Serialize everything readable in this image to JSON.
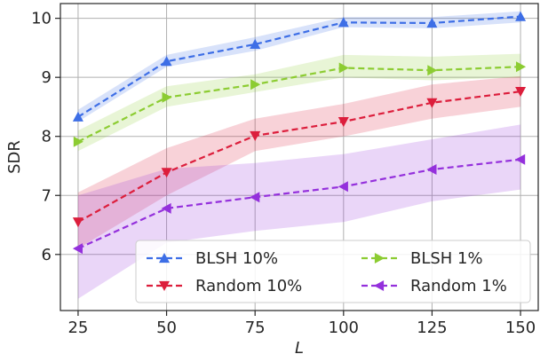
{
  "chart_data": {
    "type": "line",
    "title": "",
    "xlabel": "L",
    "ylabel": "SDR",
    "x": [
      25,
      50,
      75,
      100,
      125,
      150
    ],
    "x_ticks": [
      "25",
      "50",
      "75",
      "100",
      "125",
      "150"
    ],
    "y_ticks": [
      "6",
      "7",
      "8",
      "9",
      "10"
    ],
    "xlim": [
      20,
      155
    ],
    "ylim": [
      5.05,
      10.25
    ],
    "grid": true,
    "legend_position": "lower-right",
    "series": [
      {
        "name": "BLSH 10%",
        "values": [
          8.33,
          9.27,
          9.56,
          9.93,
          9.92,
          10.03
        ],
        "band_low": [
          8.25,
          9.18,
          9.45,
          9.85,
          9.83,
          9.93
        ],
        "band_high": [
          8.45,
          9.38,
          9.68,
          10.02,
          10.02,
          10.12
        ],
        "color": "#3d6ee6",
        "marker": "triangle-up"
      },
      {
        "name": "Random 10%",
        "values": [
          6.55,
          7.39,
          8.01,
          8.25,
          8.57,
          8.76
        ],
        "band_low": [
          6.1,
          7.0,
          7.75,
          8.0,
          8.3,
          8.5
        ],
        "band_high": [
          7.05,
          7.8,
          8.3,
          8.55,
          8.88,
          9.02
        ],
        "color": "#dc1e3c",
        "marker": "triangle-down"
      },
      {
        "name": "BLSH 1%",
        "values": [
          7.91,
          8.66,
          8.88,
          9.16,
          9.12,
          9.18
        ],
        "band_low": [
          7.75,
          8.5,
          8.75,
          9.0,
          8.95,
          9.0
        ],
        "band_high": [
          8.1,
          8.85,
          9.05,
          9.38,
          9.35,
          9.4
        ],
        "color": "#8ccc32",
        "marker": "triangle-right"
      },
      {
        "name": "Random 1%",
        "values": [
          6.1,
          6.78,
          6.97,
          7.15,
          7.44,
          7.61
        ],
        "band_low": [
          5.25,
          6.2,
          6.4,
          6.55,
          6.9,
          7.1
        ],
        "band_high": [
          7.0,
          7.45,
          7.55,
          7.7,
          7.95,
          8.2
        ],
        "color": "#9430dc",
        "marker": "triangle-left"
      }
    ],
    "legend_order": [
      0,
      1,
      2,
      3
    ]
  }
}
